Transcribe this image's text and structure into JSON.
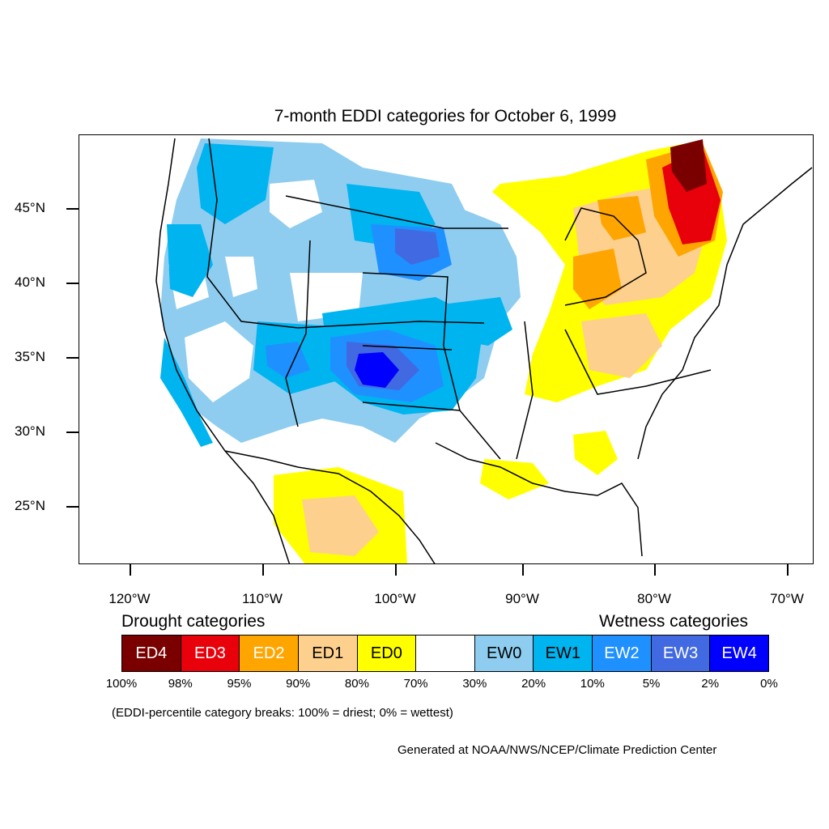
{
  "title": "7-month EDDI categories for October 6, 1999",
  "map": {
    "lat_ticks": [
      {
        "label": "45°N",
        "lat": 45
      },
      {
        "label": "40°N",
        "lat": 40
      },
      {
        "label": "35°N",
        "lat": 35
      },
      {
        "label": "30°N",
        "lat": 30
      },
      {
        "label": "25°N",
        "lat": 25
      }
    ],
    "lon_ticks": [
      {
        "label": "120°W",
        "lon": -120
      },
      {
        "label": "110°W",
        "lon": -110
      },
      {
        "label": "100°W",
        "lon": -100
      },
      {
        "label": "90°W",
        "lon": -90
      },
      {
        "label": "80°W",
        "lon": -80
      },
      {
        "label": "70°W",
        "lon": -70
      }
    ],
    "lon_range": [
      -124,
      -68.5
    ],
    "lat_range": [
      21,
      50
    ]
  },
  "legend": {
    "drought_heading": "Drought categories",
    "wetness_heading": "Wetness categories",
    "categories": [
      {
        "label": "ED4",
        "color": "#7a0000",
        "text_color": "#ffffff"
      },
      {
        "label": "ED3",
        "color": "#e8000b",
        "text_color": "#ffffff"
      },
      {
        "label": "ED2",
        "color": "#ffa500",
        "text_color": "#ffffff"
      },
      {
        "label": "ED1",
        "color": "#fdd08e",
        "text_color": "#000000"
      },
      {
        "label": "ED0",
        "color": "#ffff00",
        "text_color": "#000000"
      },
      {
        "label": "",
        "color": "#ffffff",
        "text_color": "#000000"
      },
      {
        "label": "EW0",
        "color": "#8ecdf0",
        "text_color": "#000000"
      },
      {
        "label": "EW1",
        "color": "#00b4f0",
        "text_color": "#000000"
      },
      {
        "label": "EW2",
        "color": "#1e90ff",
        "text_color": "#ffffff"
      },
      {
        "label": "EW3",
        "color": "#4169e1",
        "text_color": "#ffffff"
      },
      {
        "label": "EW4",
        "color": "#0000ff",
        "text_color": "#ffffff"
      }
    ],
    "breaks": [
      "100%",
      "98%",
      "95%",
      "90%",
      "80%",
      "70%",
      "30%",
      "20%",
      "10%",
      "5%",
      "2%",
      "0%"
    ]
  },
  "note": "(EDDI-percentile category breaks: 100% = driest; 0% = wettest)",
  "credit": "Generated at NOAA/NWS/NCEP/Climate Prediction Center"
}
